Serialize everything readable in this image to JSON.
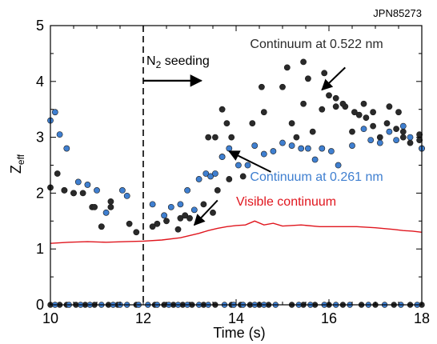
{
  "chart_data": {
    "type": "scatter",
    "shot_label": "JPN85273",
    "xlabel": "Time (s)",
    "ylabel": {
      "base": "Z",
      "sub": "eff"
    },
    "xlim": [
      10,
      18
    ],
    "ylim": [
      0,
      5
    ],
    "xticks": [
      10,
      12,
      14,
      16,
      18
    ],
    "yticks": [
      0,
      1,
      2,
      3,
      4,
      5
    ],
    "grid": false,
    "colors": {
      "black": "#2a2a2a",
      "blue": "#3f7fd0",
      "red": "#e0161e",
      "axis": "#000000",
      "marker_edge": "#1a1a1a"
    },
    "series": [
      {
        "name": "Continuum at 0.522 nm",
        "color": "#2a2a2a",
        "points": [
          [
            10.0,
            2.1
          ],
          [
            10.15,
            2.35
          ],
          [
            10.3,
            2.05
          ],
          [
            10.5,
            2.0
          ],
          [
            10.7,
            2.0
          ],
          [
            10.9,
            1.75
          ],
          [
            11.1,
            1.4
          ],
          [
            11.3,
            1.75
          ],
          [
            11.7,
            1.45
          ],
          [
            11.85,
            1.3
          ],
          [
            12.3,
            1.45
          ],
          [
            12.5,
            1.5
          ],
          [
            12.75,
            1.35
          ],
          [
            13.0,
            1.55
          ],
          [
            13.3,
            1.8
          ],
          [
            13.5,
            1.65
          ],
          [
            13.6,
            2.05
          ],
          [
            13.85,
            2.25
          ],
          [
            13.7,
            2.65
          ],
          [
            13.9,
            3.0
          ],
          [
            13.55,
            3.0
          ],
          [
            14.15,
            2.3
          ],
          [
            14.35,
            3.25
          ],
          [
            14.6,
            3.45
          ],
          [
            14.55,
            3.9
          ],
          [
            15.0,
            3.9
          ],
          [
            15.2,
            3.25
          ],
          [
            15.3,
            3.0
          ],
          [
            15.45,
            3.6
          ],
          [
            15.65,
            3.1
          ],
          [
            15.85,
            3.5
          ],
          [
            16.0,
            3.75
          ],
          [
            16.15,
            3.7
          ],
          [
            16.35,
            3.55
          ],
          [
            16.5,
            3.1
          ],
          [
            16.65,
            3.4
          ],
          [
            16.8,
            3.35
          ],
          [
            16.95,
            3.2
          ],
          [
            17.1,
            3.0
          ],
          [
            17.25,
            3.25
          ],
          [
            17.45,
            3.15
          ],
          [
            17.6,
            3.0
          ],
          [
            17.75,
            2.9
          ],
          [
            17.95,
            3.05
          ],
          [
            18.0,
            2.8
          ],
          [
            15.1,
            4.25
          ],
          [
            15.45,
            4.35
          ],
          [
            15.55,
            4.05
          ],
          [
            15.9,
            4.15
          ],
          [
            16.15,
            3.55
          ],
          [
            16.3,
            3.6
          ],
          [
            16.55,
            3.45
          ],
          [
            16.75,
            3.6
          ],
          [
            16.95,
            3.45
          ],
          [
            17.3,
            3.55
          ],
          [
            17.5,
            3.45
          ],
          [
            17.6,
            3.1
          ],
          [
            17.95,
            2.95
          ],
          [
            13.4,
            3.0
          ],
          [
            13.7,
            3.5
          ],
          [
            13.8,
            3.25
          ],
          [
            12.8,
            1.55
          ],
          [
            12.9,
            1.6
          ],
          [
            12.2,
            1.4
          ],
          [
            11.3,
            1.85
          ],
          [
            11.1,
            1.4
          ],
          [
            10.5,
            2.0
          ],
          [
            10.3,
            2.05
          ],
          [
            10.95,
            1.75
          ]
        ]
      },
      {
        "name": "Continuum at 0.261 nm",
        "color": "#3f7fd0",
        "points": [
          [
            10.0,
            3.3
          ],
          [
            10.1,
            3.45
          ],
          [
            10.2,
            3.05
          ],
          [
            10.35,
            2.8
          ],
          [
            10.6,
            2.2
          ],
          [
            10.8,
            2.15
          ],
          [
            11.0,
            2.05
          ],
          [
            11.2,
            1.65
          ],
          [
            11.55,
            2.05
          ],
          [
            11.65,
            1.95
          ],
          [
            12.2,
            1.8
          ],
          [
            12.45,
            1.6
          ],
          [
            12.6,
            1.75
          ],
          [
            12.8,
            1.8
          ],
          [
            12.95,
            2.05
          ],
          [
            13.1,
            1.7
          ],
          [
            13.2,
            2.25
          ],
          [
            13.35,
            2.35
          ],
          [
            13.45,
            2.3
          ],
          [
            13.55,
            2.35
          ],
          [
            13.7,
            2.65
          ],
          [
            13.85,
            2.8
          ],
          [
            14.05,
            2.5
          ],
          [
            14.25,
            2.5
          ],
          [
            14.4,
            2.85
          ],
          [
            14.6,
            2.7
          ],
          [
            14.8,
            2.75
          ],
          [
            15.0,
            2.9
          ],
          [
            15.2,
            2.85
          ],
          [
            15.4,
            2.8
          ],
          [
            15.55,
            2.8
          ],
          [
            15.7,
            2.6
          ],
          [
            15.85,
            2.8
          ],
          [
            16.05,
            2.75
          ],
          [
            16.2,
            2.5
          ],
          [
            16.5,
            2.85
          ],
          [
            16.75,
            3.15
          ],
          [
            16.9,
            2.95
          ],
          [
            17.1,
            2.9
          ],
          [
            17.3,
            3.1
          ],
          [
            17.45,
            2.95
          ],
          [
            17.6,
            3.2
          ],
          [
            17.75,
            3.0
          ],
          [
            18.0,
            2.8
          ]
        ]
      }
    ],
    "zero_markers": {
      "y": 0,
      "black_x": [
        10.0,
        10.2,
        10.35,
        10.55,
        10.75,
        10.95,
        11.25,
        11.45,
        11.85,
        12.25,
        12.45,
        12.65,
        12.85,
        13.05,
        13.3,
        13.55,
        13.9,
        14.1,
        14.3,
        14.5,
        14.7,
        15.2,
        15.45,
        15.7,
        16.0,
        16.3,
        16.7,
        17.0,
        17.4,
        17.75,
        18.0
      ],
      "blue_x": [
        10.1,
        10.4,
        10.65,
        10.85,
        11.1,
        11.35,
        11.5,
        11.65,
        11.9,
        12.1,
        12.3,
        12.55,
        12.75,
        12.95,
        13.2,
        13.4,
        13.75,
        13.95,
        14.15,
        14.4,
        14.6,
        14.85,
        15.35,
        15.6,
        15.9,
        16.15,
        16.45,
        16.85,
        17.2,
        17.55,
        17.9
      ]
    },
    "visible_continuum": {
      "name": "Visible continuum",
      "color": "#e0161e",
      "x": [
        10.0,
        10.4,
        10.8,
        11.2,
        11.6,
        12.0,
        12.4,
        12.8,
        13.0,
        13.2,
        13.4,
        13.6,
        13.8,
        14.0,
        14.2,
        14.4,
        14.6,
        14.8,
        15.0,
        15.4,
        15.8,
        16.2,
        16.6,
        17.0,
        17.4,
        17.6,
        17.8,
        18.0
      ],
      "y": [
        1.1,
        1.12,
        1.13,
        1.12,
        1.13,
        1.14,
        1.16,
        1.2,
        1.24,
        1.28,
        1.33,
        1.37,
        1.4,
        1.42,
        1.43,
        1.5,
        1.43,
        1.46,
        1.41,
        1.43,
        1.4,
        1.4,
        1.4,
        1.38,
        1.35,
        1.33,
        1.32,
        1.3
      ]
    },
    "seeding_start_x": 12,
    "annotations": {
      "n2_seeding": {
        "base": "N",
        "sub": "2",
        "rest": " seeding",
        "x": 12,
        "y": 4.3,
        "arrow_to_x": 13.25
      },
      "cont_522": {
        "text": "Continuum at 0.522 nm",
        "x": 14.3,
        "y": 4.6,
        "arrow_from": [
          16.35,
          4.25
        ],
        "arrow_to": [
          15.85,
          3.85
        ]
      },
      "cont_261": {
        "text": "Continuum at 0.261 nm",
        "x": 14.3,
        "y": 2.22,
        "arrow_from": [
          14.75,
          2.38
        ],
        "arrow_to": [
          13.85,
          2.75
        ]
      },
      "visible": {
        "text": "Visible continuum",
        "x": 14.0,
        "y": 1.78,
        "arrow_from": [
          13.6,
          1.87
        ],
        "arrow_to": [
          13.1,
          1.43
        ]
      }
    }
  }
}
